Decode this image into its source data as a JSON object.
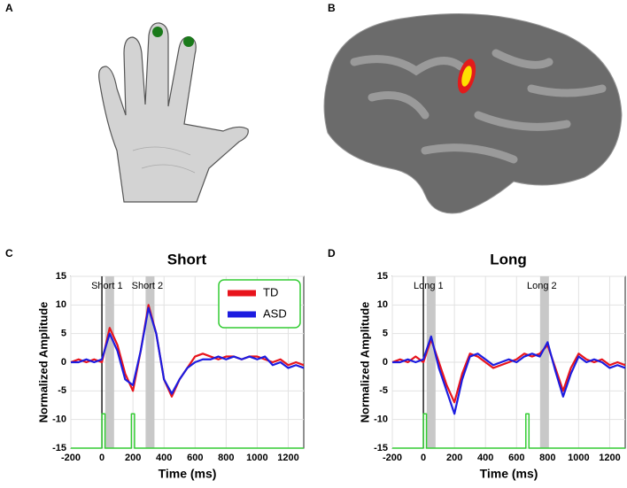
{
  "panels": [
    "A",
    "B",
    "C",
    "D"
  ],
  "chart_data": [
    {
      "type": "line",
      "title": "Short",
      "xlabel": "Time (ms)",
      "ylabel": "Normalized Amplitude",
      "xlim": [
        -200,
        1300
      ],
      "ylim": [
        -15,
        15
      ],
      "xticks": [
        -200,
        0,
        200,
        400,
        600,
        800,
        1000,
        1200
      ],
      "yticks": [
        -15,
        -10,
        -5,
        0,
        5,
        10,
        15
      ],
      "grid": true,
      "legend": "upper right",
      "legend_border": "#33cc33",
      "x": [
        -200,
        -150,
        -100,
        -50,
        0,
        50,
        100,
        150,
        200,
        250,
        300,
        350,
        400,
        450,
        500,
        550,
        600,
        650,
        700,
        750,
        800,
        850,
        900,
        950,
        1000,
        1050,
        1100,
        1150,
        1200,
        1250,
        1300
      ],
      "series": [
        {
          "name": "TD",
          "color": "#e8141c",
          "values": [
            0,
            0.5,
            0,
            0.5,
            0,
            6,
            3,
            -2,
            -5,
            2,
            10,
            5,
            -3,
            -6,
            -3,
            -1,
            1,
            1.5,
            1,
            0.5,
            1,
            1,
            0.5,
            1,
            1,
            0.5,
            0,
            0.5,
            -0.5,
            0,
            -0.5
          ]
        },
        {
          "name": "ASD",
          "color": "#1c1ce0",
          "values": [
            0,
            0,
            0.5,
            0,
            0.5,
            5,
            2,
            -3,
            -4,
            2,
            9.5,
            5,
            -3,
            -5.5,
            -3,
            -1,
            0,
            0.5,
            0.5,
            1,
            0.5,
            1,
            0.5,
            1,
            0.5,
            1,
            -0.5,
            0,
            -1,
            -0.5,
            -1
          ]
        }
      ],
      "stimulus": {
        "color": "#33cc33",
        "x": [
          -200,
          0,
          0,
          20,
          20,
          190,
          190,
          210,
          210,
          1300
        ],
        "values": [
          -15,
          -15,
          -9,
          -9,
          -15,
          -15,
          -9,
          -9,
          -15,
          -15
        ]
      },
      "annotations": [
        {
          "text": "Short 1",
          "x": 50
        },
        {
          "text": "Short 2",
          "x": 310
        }
      ]
    },
    {
      "type": "line",
      "title": "Long",
      "xlabel": "Time (ms)",
      "ylabel": "Normalized Amplitude",
      "xlim": [
        -200,
        1300
      ],
      "ylim": [
        -15,
        15
      ],
      "xticks": [
        -200,
        0,
        200,
        400,
        600,
        800,
        1000,
        1200
      ],
      "yticks": [
        -15,
        -10,
        -5,
        0,
        5,
        10,
        15
      ],
      "grid": true,
      "legend": "none",
      "x": [
        -200,
        -150,
        -100,
        -50,
        0,
        50,
        100,
        150,
        200,
        250,
        300,
        350,
        400,
        450,
        500,
        550,
        600,
        650,
        700,
        750,
        800,
        850,
        900,
        950,
        1000,
        1050,
        1100,
        1150,
        1200,
        1250,
        1300
      ],
      "series": [
        {
          "name": "TD",
          "color": "#e8141c",
          "values": [
            0,
            0.5,
            0,
            1,
            0,
            4,
            0,
            -4,
            -7,
            -2,
            1.5,
            1,
            0,
            -1,
            -0.5,
            0,
            0.5,
            1.5,
            1,
            1.5,
            3,
            -1,
            -5,
            -1,
            1.5,
            0.5,
            0,
            0.5,
            -0.5,
            0,
            -0.5
          ]
        },
        {
          "name": "ASD",
          "color": "#1c1ce0",
          "values": [
            0,
            0,
            0.5,
            0,
            0.5,
            4.5,
            -1,
            -5,
            -9,
            -3,
            1,
            1.5,
            0.5,
            -0.5,
            0,
            0.5,
            0,
            1,
            1.5,
            1,
            3.5,
            -1.5,
            -6,
            -2,
            1,
            0,
            0.5,
            0,
            -1,
            -0.5,
            -1
          ]
        }
      ],
      "stimulus": {
        "color": "#33cc33",
        "x": [
          -200,
          0,
          0,
          20,
          20,
          660,
          660,
          680,
          680,
          1300
        ],
        "values": [
          -15,
          -15,
          -9,
          -9,
          -15,
          -15,
          -9,
          -9,
          -15,
          -15
        ]
      },
      "annotations": [
        {
          "text": "Long 1",
          "x": 50
        },
        {
          "text": "Long 2",
          "x": 780
        }
      ]
    }
  ]
}
